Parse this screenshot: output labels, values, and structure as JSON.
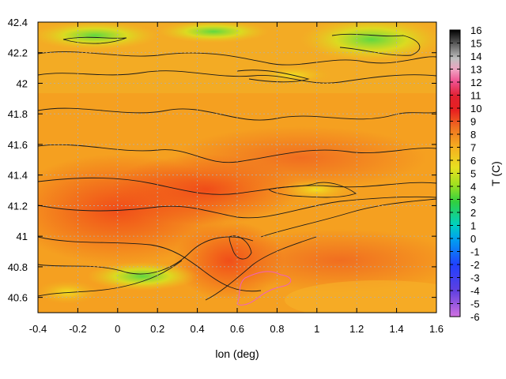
{
  "chart_data": {
    "type": "heatmap",
    "title": "",
    "xlabel": "lon (deg)",
    "ylabel": "",
    "colorbar_label": "T (C)",
    "xlim": [
      -0.4,
      1.6
    ],
    "ylim": [
      40.5,
      42.4
    ],
    "x_ticks": [
      "-0.4",
      "-0.2",
      "0",
      "0.2",
      "0.4",
      "0.6",
      "0.8",
      "1",
      "1.2",
      "1.4",
      "1.6"
    ],
    "y_ticks": [
      "42.4",
      "42.2",
      "42",
      "41.8",
      "41.6",
      "41.4",
      "41.2",
      "41",
      "40.8",
      "40.6"
    ],
    "colorbar_range": [
      -6,
      16
    ],
    "colorbar_ticks": [
      "16",
      "15",
      "14",
      "13",
      "12",
      "11",
      "10",
      "9",
      "8",
      "7",
      "6",
      "5",
      "4",
      "3",
      "2",
      "1",
      "0",
      "-1",
      "-2",
      "-3",
      "-4",
      "-5",
      "-6"
    ],
    "grid": true,
    "contour_lines": true,
    "colors": {
      "background_field": "#f5a020",
      "warm_core": "#f05020",
      "cool_peaks": "#80e040"
    }
  }
}
